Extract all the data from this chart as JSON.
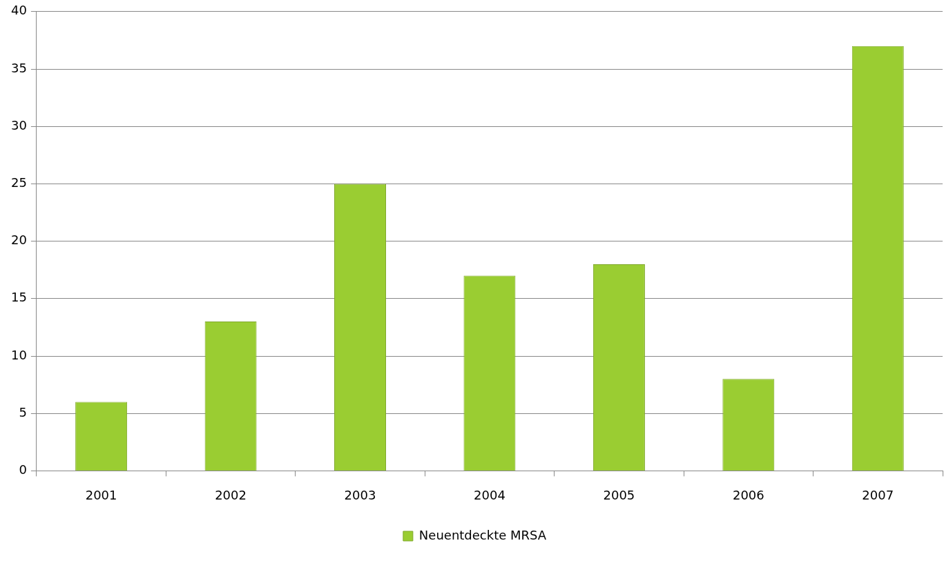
{
  "chart_data": {
    "type": "bar",
    "categories": [
      "2001",
      "2002",
      "2003",
      "2004",
      "2005",
      "2006",
      "2007"
    ],
    "series": [
      {
        "name": "Neuentdeckte MRSA",
        "color": "#9acd32",
        "values": [
          6,
          13,
          25,
          17,
          18,
          8,
          37
        ]
      }
    ],
    "ylim": [
      0,
      40
    ],
    "yticks": [
      0,
      5,
      10,
      15,
      20,
      25,
      30,
      35,
      40
    ],
    "grid": "y",
    "legend": "bottom"
  }
}
